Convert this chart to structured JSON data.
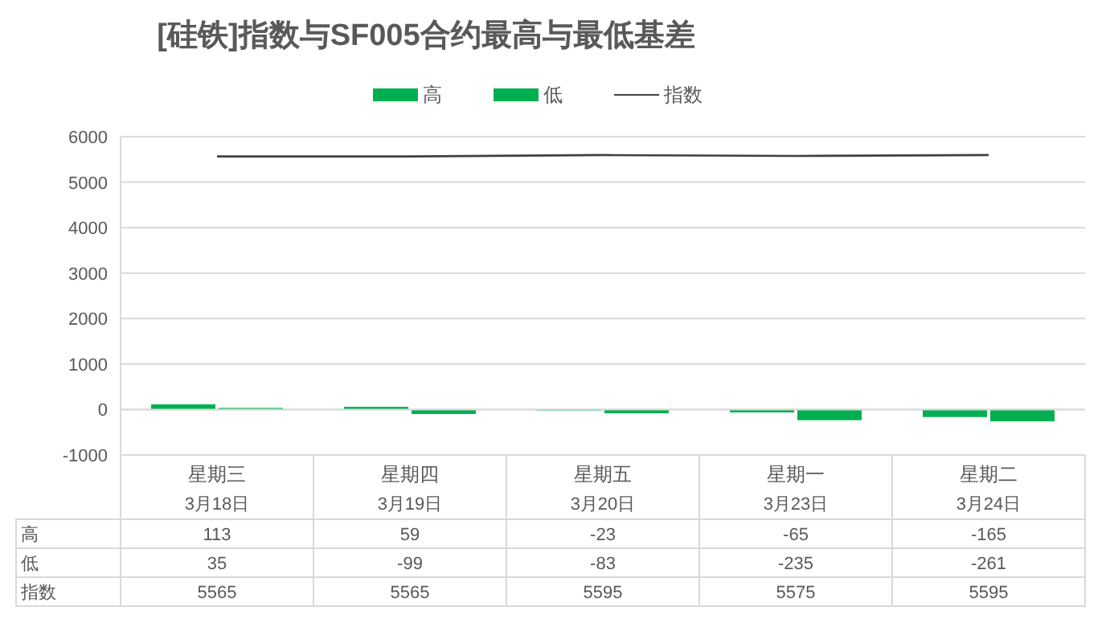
{
  "chart_data": {
    "type": "bar",
    "title": "[硅铁]指数与SF005合约最高与最低基差",
    "categories": [
      "星期三\n3月18日",
      "星期四\n3月19日",
      "星期五\n3月20日",
      "星期一\n3月23日",
      "星期二\n3月24日"
    ],
    "series": [
      {
        "name": "高",
        "color": "#00b050",
        "values": [
          113,
          59,
          -23,
          -65,
          -165
        ]
      },
      {
        "name": "低",
        "color": "#00b050",
        "values": [
          35,
          -99,
          -83,
          -235,
          -261
        ]
      },
      {
        "name": "指数",
        "type": "line",
        "color": "#404040",
        "values": [
          5565,
          5565,
          5595,
          5575,
          5595
        ]
      }
    ],
    "ylim": [
      -1000,
      6000
    ],
    "yticks": [
      -1000,
      0,
      1000,
      2000,
      3000,
      4000,
      5000,
      6000
    ],
    "grid": "y",
    "legend": "top",
    "data_labels": true
  }
}
